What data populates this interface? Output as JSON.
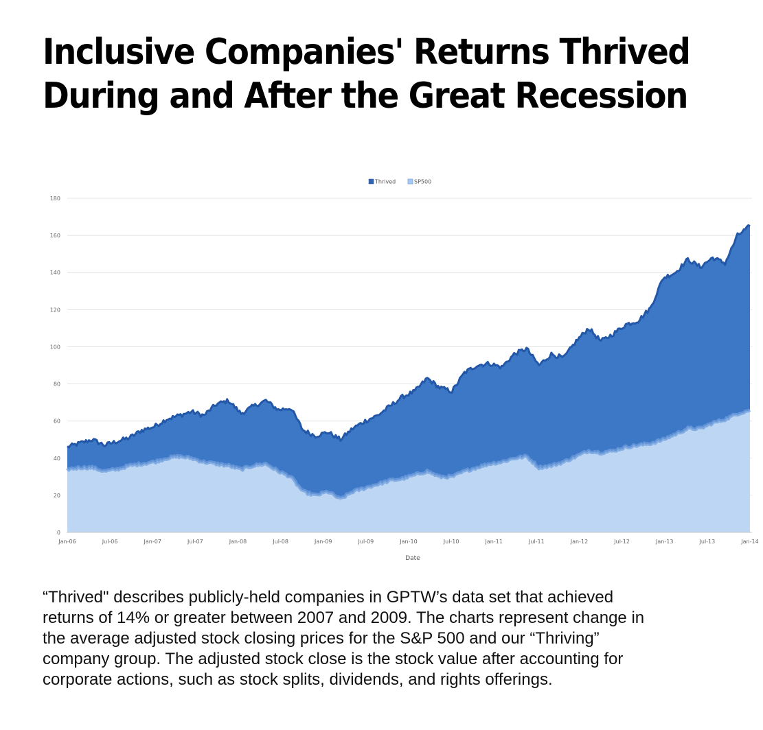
{
  "title_lines": [
    "Inclusive Companies' Returns Thrived",
    "During and After the Great Recession"
  ],
  "caption_lines": [
    "“Thrived\" describes publicly-held companies in GPTW’s data set that achieved",
    "returns of 14% or greater between 2007 and 2009. The charts represent change in",
    "the average adjusted stock closing prices for the S&P 500 and our “Thriving”",
    "company group. The adjusted stock close is the stock value after accounting for",
    "corporate actions, such as stock splits, dividends, and rights offerings."
  ],
  "chart_data": {
    "type": "area",
    "title": "",
    "xlabel": "Date",
    "ylabel": "",
    "ylim": [
      0,
      180
    ],
    "yticks": [
      "0",
      "20",
      "40",
      "60",
      "80",
      "100",
      "120",
      "140",
      "160",
      "180"
    ],
    "xticks": [
      "Jan-06",
      "Jul-06",
      "Jan-07",
      "Jul-07",
      "Jan-08",
      "Jul-08",
      "Jan-09",
      "Jul-09",
      "Jan-10",
      "Jul-10",
      "Jan-11",
      "Jul-11",
      "Jan-12",
      "Jul-12",
      "Jan-13",
      "Jul-13",
      "Jan-14"
    ],
    "legend": {
      "position": "top-center",
      "entries": [
        "Thrived",
        "SP500"
      ]
    },
    "colors": {
      "Thrived": "#3d78c7",
      "Thrived_edge": "#2357a8",
      "SP500": "#bcd6f3",
      "SP500_edge": "#6f9edc"
    },
    "series": [
      {
        "name": "Thrived",
        "values": [
          46,
          48,
          50,
          47,
          49,
          51,
          55,
          57,
          61,
          63,
          65,
          63,
          69,
          71,
          64,
          68,
          71,
          66,
          67,
          55,
          52,
          54,
          50,
          56,
          60,
          63,
          68,
          73,
          76,
          83,
          78,
          76,
          86,
          90,
          91,
          89,
          96,
          99,
          90,
          96,
          94,
          103,
          110,
          103,
          107,
          112,
          114,
          121,
          137,
          140,
          147,
          143,
          148,
          145,
          160,
          165
        ]
      },
      {
        "name": "SP500",
        "values": [
          34,
          35,
          35,
          33,
          34,
          36,
          37,
          38,
          40,
          41,
          40,
          38,
          37,
          36,
          34,
          36,
          37,
          33,
          30,
          22,
          20,
          22,
          18,
          22,
          24,
          26,
          28,
          29,
          31,
          33,
          30,
          30,
          33,
          35,
          37,
          38,
          40,
          41,
          35,
          36,
          38,
          41,
          44,
          43,
          44,
          46,
          47,
          48,
          50,
          53,
          56,
          56,
          59,
          61,
          64,
          66
        ]
      }
    ]
  }
}
